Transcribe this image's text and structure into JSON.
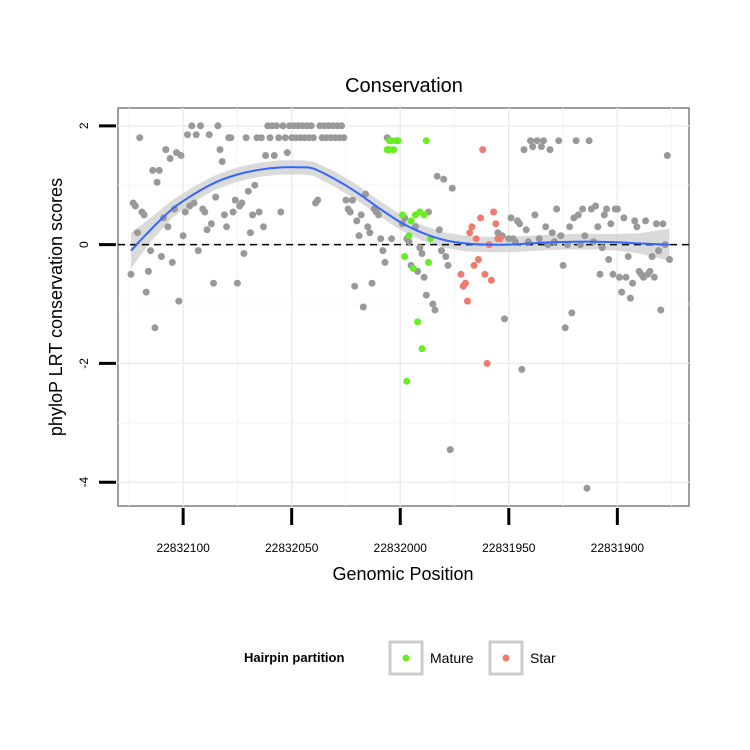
{
  "chart_data": {
    "type": "scatter",
    "title": "Conservation",
    "xlabel": "Genomic Position",
    "ylabel": "phyloP LRT conservation scores",
    "x_reversed": true,
    "xlim": [
      22832130,
      22831867
    ],
    "ylim": [
      -4.4,
      2.3
    ],
    "x_ticks": [
      22832100,
      22832050,
      22832000,
      22831950,
      22831900
    ],
    "x_tick_labels": [
      "22832100",
      "22832050",
      "22832000",
      "22831950",
      "22831900"
    ],
    "y_ticks": [
      -4,
      -2,
      0,
      2
    ],
    "y_tick_labels": [
      "-4",
      "-2",
      "0",
      "2"
    ],
    "reference_line": {
      "y": 0,
      "style": "dashed"
    },
    "grid": true,
    "legend": {
      "title": "Hairpin partition",
      "position": "bottom",
      "entries": [
        {
          "name": "Mature",
          "color": "#66ee22"
        },
        {
          "name": "Star",
          "color": "#f07a6e"
        }
      ]
    },
    "colors": {
      "other": "#999999",
      "mature": "#66ee22",
      "star": "#f07a6e",
      "smooth": "#3366ff",
      "ribbon": "#d4d4d4"
    },
    "series": [
      {
        "group": "other",
        "points": [
          [
            22832124,
            -0.5
          ],
          [
            22832123,
            0.7
          ],
          [
            22832122,
            0.65
          ],
          [
            22832121,
            0.2
          ],
          [
            22832120,
            1.8
          ],
          [
            22832119,
            0.55
          ],
          [
            22832118,
            0.5
          ],
          [
            22832117,
            -0.8
          ],
          [
            22832116,
            -0.45
          ],
          [
            22832115,
            -0.1
          ],
          [
            22832114,
            1.25
          ],
          [
            22832113,
            -1.4
          ],
          [
            22832112,
            1.05
          ],
          [
            22832111,
            1.25
          ],
          [
            22832110,
            -0.2
          ],
          [
            22832109,
            0.45
          ],
          [
            22832108,
            1.6
          ],
          [
            22832107,
            0.3
          ],
          [
            22832106,
            1.45
          ],
          [
            22832105,
            -0.3
          ],
          [
            22832104,
            0.6
          ],
          [
            22832103,
            1.55
          ],
          [
            22832102,
            -0.95
          ],
          [
            22832101,
            1.5
          ],
          [
            22832100,
            0.15
          ],
          [
            22832099,
            0.55
          ],
          [
            22832098,
            1.85
          ],
          [
            22832097,
            0.65
          ],
          [
            22832096,
            2.0
          ],
          [
            22832095,
            0.7
          ],
          [
            22832094,
            1.85
          ],
          [
            22832093,
            -0.1
          ],
          [
            22832092,
            2.0
          ],
          [
            22832091,
            0.6
          ],
          [
            22832090,
            0.55
          ],
          [
            22832089,
            0.25
          ],
          [
            22832088,
            1.85
          ],
          [
            22832087,
            0.35
          ],
          [
            22832086,
            -0.65
          ],
          [
            22832085,
            0.8
          ],
          [
            22832084,
            2.0
          ],
          [
            22832083,
            1.6
          ],
          [
            22832082,
            1.4
          ],
          [
            22832081,
            0.5
          ],
          [
            22832080,
            0.3
          ],
          [
            22832079,
            1.8
          ],
          [
            22832078,
            1.8
          ],
          [
            22832077,
            0.55
          ],
          [
            22832076,
            0.75
          ],
          [
            22832075,
            -0.65
          ],
          [
            22832074,
            0.65
          ],
          [
            22832073,
            0.7
          ],
          [
            22832072,
            -0.15
          ],
          [
            22832071,
            1.8
          ],
          [
            22832070,
            0.9
          ],
          [
            22832069,
            0.2
          ],
          [
            22832068,
            0.5
          ],
          [
            22832067,
            1.0
          ],
          [
            22832066,
            1.8
          ],
          [
            22832065,
            0.55
          ],
          [
            22832064,
            1.8
          ],
          [
            22832063,
            0.3
          ],
          [
            22832062,
            1.5
          ],
          [
            22832061,
            2.0
          ],
          [
            22832060,
            1.8
          ],
          [
            22832059,
            2.0
          ],
          [
            22832058,
            1.5
          ],
          [
            22832057,
            2.0
          ],
          [
            22832056,
            1.8
          ],
          [
            22832055,
            0.55
          ],
          [
            22832054,
            2.0
          ],
          [
            22832053,
            1.8
          ],
          [
            22832052,
            1.55
          ],
          [
            22832051,
            2.0
          ],
          [
            22832050,
            1.8
          ],
          [
            22832049,
            2.0
          ],
          [
            22832048,
            1.8
          ],
          [
            22832047,
            2.0
          ],
          [
            22832046,
            1.8
          ],
          [
            22832045,
            2.0
          ],
          [
            22832044,
            1.8
          ],
          [
            22832043,
            2.0
          ],
          [
            22832042,
            1.8
          ],
          [
            22832041,
            2.0
          ],
          [
            22832040,
            1.8
          ],
          [
            22832039,
            0.7
          ],
          [
            22832038,
            0.75
          ],
          [
            22832037,
            2.0
          ],
          [
            22832036,
            1.8
          ],
          [
            22832035,
            2.0
          ],
          [
            22832034,
            1.8
          ],
          [
            22832033,
            2.0
          ],
          [
            22832032,
            1.8
          ],
          [
            22832031,
            2.0
          ],
          [
            22832030,
            1.8
          ],
          [
            22832029,
            2.0
          ],
          [
            22832028,
            1.8
          ],
          [
            22832027,
            2.0
          ],
          [
            22832026,
            1.8
          ],
          [
            22832025,
            0.75
          ],
          [
            22832024,
            0.6
          ],
          [
            22832023,
            0.55
          ],
          [
            22832022,
            0.75
          ],
          [
            22832021,
            -0.7
          ],
          [
            22832020,
            0.4
          ],
          [
            22832019,
            0.15
          ],
          [
            22832018,
            0.5
          ],
          [
            22832017,
            -1.05
          ],
          [
            22832016,
            0.85
          ],
          [
            22832015,
            0.3
          ],
          [
            22832014,
            0.2
          ],
          [
            22832013,
            -0.65
          ],
          [
            22832012,
            0.6
          ],
          [
            22832011,
            0.55
          ],
          [
            22832010,
            0.5
          ],
          [
            22832009,
            0.1
          ],
          [
            22832008,
            -0.1
          ],
          [
            22832007,
            -0.3
          ],
          [
            22832006,
            1.8
          ],
          [
            22832004,
            0.1
          ],
          [
            22831999,
            0.35
          ],
          [
            22831998,
            0.45
          ],
          [
            22831997,
            0.1
          ],
          [
            22831996,
            0.05
          ],
          [
            22831995,
            -0.35
          ],
          [
            22831993,
            0.3
          ],
          [
            22831992,
            -0.45
          ],
          [
            22831991,
            -0.05
          ],
          [
            22831990,
            -0.15
          ],
          [
            22831989,
            -0.55
          ],
          [
            22831988,
            -0.85
          ],
          [
            22831987,
            0.55
          ],
          [
            22831985,
            -1.0
          ],
          [
            22831984,
            -1.1
          ],
          [
            22831983,
            1.15
          ],
          [
            22831982,
            0.25
          ],
          [
            22831981,
            -0.1
          ],
          [
            22831980,
            1.1
          ],
          [
            22831979,
            -0.2
          ],
          [
            22831978,
            -0.35
          ],
          [
            22831977,
            -3.45
          ],
          [
            22831976,
            0.95
          ],
          [
            22831955,
            0.2
          ],
          [
            22831953,
            0.15
          ],
          [
            22831952,
            -1.25
          ],
          [
            22831950,
            0.1
          ],
          [
            22831949,
            0.45
          ],
          [
            22831948,
            0.1
          ],
          [
            22831947,
            0.05
          ],
          [
            22831946,
            0.4
          ],
          [
            22831945,
            0.35
          ],
          [
            22831944,
            -2.1
          ],
          [
            22831943,
            1.6
          ],
          [
            22831942,
            0.25
          ],
          [
            22831941,
            0.05
          ],
          [
            22831940,
            1.75
          ],
          [
            22831939,
            1.65
          ],
          [
            22831938,
            0.5
          ],
          [
            22831937,
            1.75
          ],
          [
            22831936,
            0.1
          ],
          [
            22831935,
            1.65
          ],
          [
            22831934,
            1.75
          ],
          [
            22831933,
            0.3
          ],
          [
            22831932,
            0.0
          ],
          [
            22831931,
            1.6
          ],
          [
            22831930,
            0.2
          ],
          [
            22831929,
            0.05
          ],
          [
            22831928,
            0.6
          ],
          [
            22831927,
            1.75
          ],
          [
            22831926,
            0.15
          ],
          [
            22831925,
            -0.35
          ],
          [
            22831924,
            -1.4
          ],
          [
            22831923,
            0.0
          ],
          [
            22831922,
            0.3
          ],
          [
            22831921,
            -1.15
          ],
          [
            22831920,
            0.45
          ],
          [
            22831919,
            1.75
          ],
          [
            22831918,
            0.5
          ],
          [
            22831917,
            0.0
          ],
          [
            22831916,
            0.6
          ],
          [
            22831915,
            0.15
          ],
          [
            22831914,
            -4.1
          ],
          [
            22831913,
            1.75
          ],
          [
            22831912,
            0.6
          ],
          [
            22831911,
            0.05
          ],
          [
            22831910,
            0.65
          ],
          [
            22831909,
            0.3
          ],
          [
            22831908,
            -0.5
          ],
          [
            22831907,
            -0.05
          ],
          [
            22831906,
            0.5
          ],
          [
            22831905,
            0.6
          ],
          [
            22831904,
            -0.25
          ],
          [
            22831903,
            0.35
          ],
          [
            22831902,
            -0.5
          ],
          [
            22831901,
            0.6
          ],
          [
            22831900,
            0.6
          ],
          [
            22831899,
            -0.55
          ],
          [
            22831898,
            -0.8
          ],
          [
            22831897,
            0.45
          ],
          [
            22831896,
            -0.55
          ],
          [
            22831895,
            -0.2
          ],
          [
            22831894,
            -0.9
          ],
          [
            22831893,
            -0.65
          ],
          [
            22831892,
            0.4
          ],
          [
            22831891,
            0.3
          ],
          [
            22831890,
            -0.45
          ],
          [
            22831889,
            -0.5
          ],
          [
            22831888,
            -0.55
          ],
          [
            22831887,
            0.4
          ],
          [
            22831886,
            -0.5
          ],
          [
            22831885,
            -0.45
          ],
          [
            22831884,
            -0.2
          ],
          [
            22831883,
            -0.55
          ],
          [
            22831882,
            0.35
          ],
          [
            22831881,
            -0.1
          ],
          [
            22831880,
            -1.1
          ],
          [
            22831879,
            0.35
          ],
          [
            22831878,
            0.0
          ],
          [
            22831877,
            1.5
          ],
          [
            22831876,
            -0.25
          ]
        ]
      },
      {
        "group": "mature",
        "points": [
          [
            22832006,
            1.6
          ],
          [
            22832005,
            1.75
          ],
          [
            22832005,
            1.6
          ],
          [
            22832004,
            1.75
          ],
          [
            22832003,
            1.6
          ],
          [
            22832002,
            1.75
          ],
          [
            22832001,
            1.75
          ],
          [
            22831999,
            0.5
          ],
          [
            22831998,
            -0.2
          ],
          [
            22831997,
            -2.3
          ],
          [
            22831996,
            0.15
          ],
          [
            22831995,
            0.4
          ],
          [
            22831994,
            -0.4
          ],
          [
            22831993,
            0.5
          ],
          [
            22831992,
            -1.3
          ],
          [
            22831991,
            0.55
          ],
          [
            22831990,
            -1.75
          ],
          [
            22831989,
            0.5
          ],
          [
            22831988,
            1.75
          ],
          [
            22831987,
            -0.3
          ],
          [
            22831986,
            0.1
          ]
        ]
      },
      {
        "group": "star",
        "points": [
          [
            22831972,
            -0.5
          ],
          [
            22831971,
            -0.7
          ],
          [
            22831970,
            -0.65
          ],
          [
            22831969,
            -0.95
          ],
          [
            22831968,
            0.2
          ],
          [
            22831967,
            0.3
          ],
          [
            22831966,
            -0.35
          ],
          [
            22831965,
            0.1
          ],
          [
            22831964,
            -0.25
          ],
          [
            22831963,
            0.45
          ],
          [
            22831962,
            1.6
          ],
          [
            22831961,
            -0.5
          ],
          [
            22831960,
            -2.0
          ],
          [
            22831959,
            0.0
          ],
          [
            22831958,
            -0.6
          ],
          [
            22831957,
            0.55
          ],
          [
            22831956,
            0.35
          ],
          [
            22831955,
            0.1
          ],
          [
            22831954,
            0.1
          ]
        ]
      }
    ],
    "smooth": [
      [
        22832124,
        -0.1
      ],
      [
        22832115,
        0.25
      ],
      [
        22832105,
        0.6
      ],
      [
        22832095,
        0.85
      ],
      [
        22832085,
        1.05
      ],
      [
        22832075,
        1.18
      ],
      [
        22832065,
        1.26
      ],
      [
        22832055,
        1.3
      ],
      [
        22832045,
        1.3
      ],
      [
        22832040,
        1.28
      ],
      [
        22832030,
        1.1
      ],
      [
        22832020,
        0.88
      ],
      [
        22832010,
        0.62
      ],
      [
        22832000,
        0.38
      ],
      [
        22831990,
        0.2
      ],
      [
        22831980,
        0.08
      ],
      [
        22831970,
        0.02
      ],
      [
        22831960,
        0.0
      ],
      [
        22831950,
        0.0
      ],
      [
        22831940,
        0.02
      ],
      [
        22831930,
        0.04
      ],
      [
        22831920,
        0.05
      ],
      [
        22831910,
        0.05
      ],
      [
        22831900,
        0.04
      ],
      [
        22831890,
        0.02
      ],
      [
        22831876,
        0.0
      ]
    ],
    "smooth_band": [
      0.3,
      0.2,
      0.15,
      0.13,
      0.12,
      0.12,
      0.12,
      0.12,
      0.12,
      0.12,
      0.13,
      0.13,
      0.13,
      0.13,
      0.13,
      0.13,
      0.13,
      0.13,
      0.13,
      0.13,
      0.13,
      0.13,
      0.13,
      0.14,
      0.17,
      0.27
    ]
  }
}
